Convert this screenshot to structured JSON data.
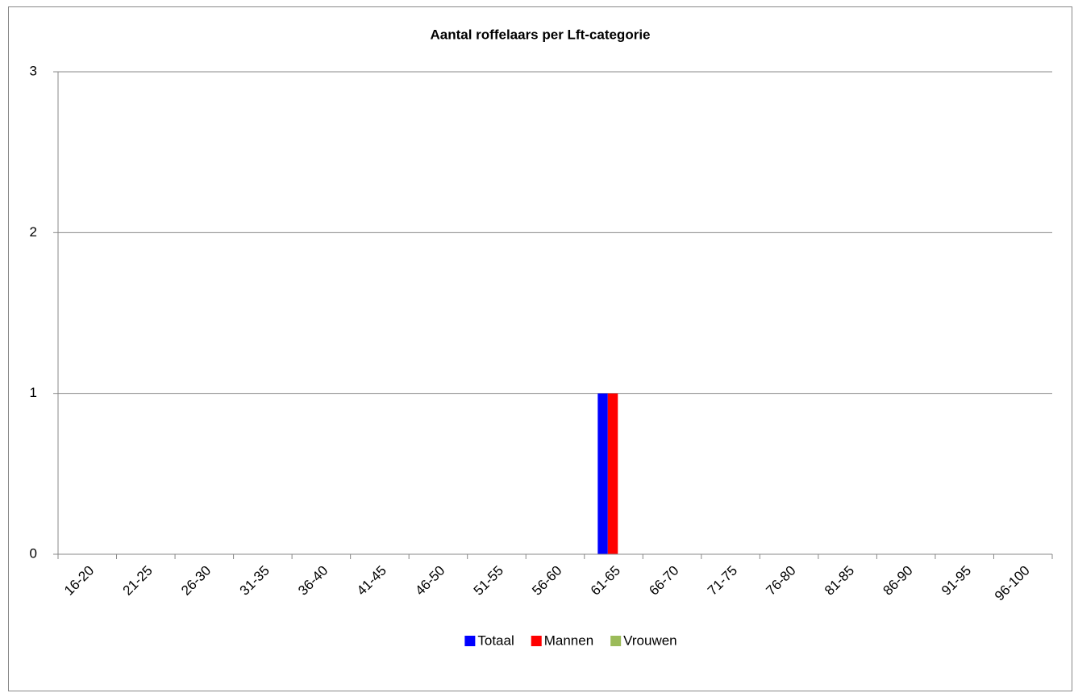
{
  "chart_data": {
    "type": "bar",
    "title": "Aantal roffelaars per Lft-categorie",
    "categories": [
      "16-20",
      "21-25",
      "26-30",
      "31-35",
      "36-40",
      "41-45",
      "46-50",
      "51-55",
      "56-60",
      "61-65",
      "66-70",
      "71-75",
      "76-80",
      "81-85",
      "86-90",
      "91-95",
      "96-100"
    ],
    "series": [
      {
        "name": "Totaal",
        "color": "#0000ff",
        "values": [
          0,
          0,
          0,
          0,
          0,
          0,
          0,
          0,
          0,
          1,
          0,
          0,
          0,
          0,
          0,
          0,
          0
        ]
      },
      {
        "name": "Mannen",
        "color": "#ff0000",
        "values": [
          0,
          0,
          0,
          0,
          0,
          0,
          0,
          0,
          0,
          1,
          0,
          0,
          0,
          0,
          0,
          0,
          0
        ]
      },
      {
        "name": "Vrouwen",
        "color": "#9bbb59",
        "values": [
          0,
          0,
          0,
          0,
          0,
          0,
          0,
          0,
          0,
          0,
          0,
          0,
          0,
          0,
          0,
          0,
          0
        ]
      }
    ],
    "ylim": [
      0,
      3
    ],
    "yticks": [
      0,
      1,
      2,
      3
    ],
    "grid": true,
    "legend": "bottom"
  }
}
